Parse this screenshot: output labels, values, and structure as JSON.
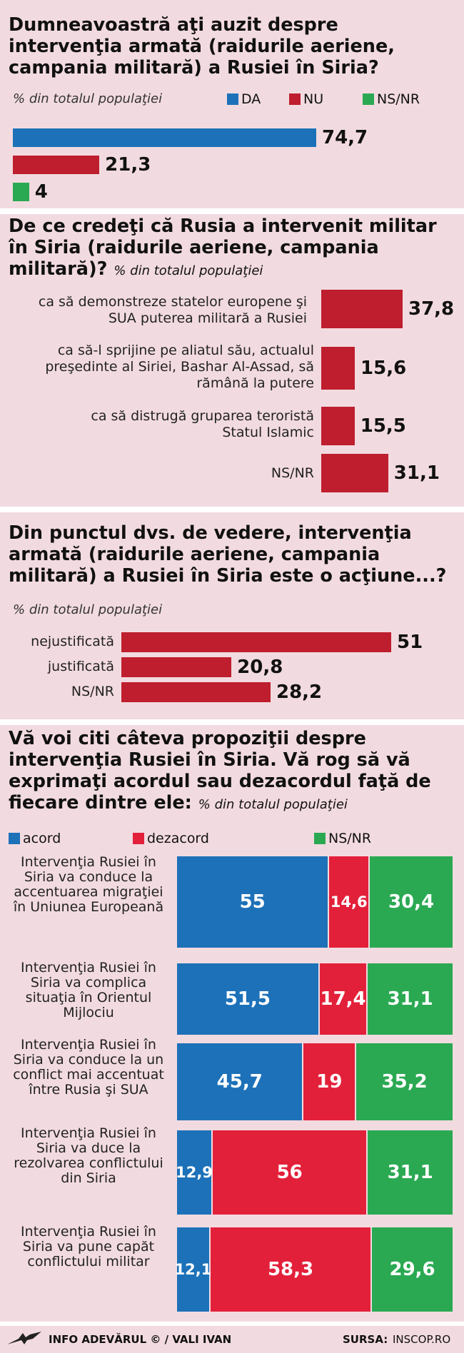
{
  "colors": {
    "da": "#1d71b8",
    "nu": "#be1e2d",
    "nsnr": "#2aa952",
    "acord": "#1d71b8",
    "dezacord": "#e3203a",
    "panel": "#f2dbe0"
  },
  "q1": {
    "title": "Dumneavoastră aţi auzit despre intervenţia armată (raidurile aeriene, campania militară) a Rusiei în Siria?",
    "subtitle": "% din totalul populaţiei",
    "legend": [
      "DA",
      "NU",
      "NS/NR"
    ]
  },
  "q2": {
    "title": "De ce credeţi că Rusia a intervenit militar în Siria (raidurile aeriene, campania militară)?",
    "subtitle": "% din totalul populaţiei"
  },
  "q3": {
    "title": "Din punctul dvs. de vedere, intervenţia armată (raidurile aeriene, campania militară) a Rusiei în Siria este o acţiune...?",
    "subtitle": "% din totalul populaţiei"
  },
  "q4": {
    "title": "Vă voi citi câteva propoziţii despre intervenţia Rusiei în Siria. Vă rog să vă exprimaţi acordul sau dezacordul faţă de fiecare dintre ele:",
    "subtitle": "% din totalul populaţiei",
    "legend": [
      "acord",
      "dezacord",
      "NS/NR"
    ]
  },
  "footer": {
    "credit": "INFO ADEVĂRUL © / VALI IVAN",
    "source_label": "SURSA:",
    "source": "INSCOP.RO"
  },
  "chart_data": [
    {
      "type": "bar",
      "categories": [
        "DA",
        "NU",
        "NS/NR"
      ],
      "values": [
        74.7,
        21.3,
        4
      ],
      "labels": [
        "74,7",
        "21,3",
        "4"
      ]
    },
    {
      "type": "bar",
      "categories": [
        "ca să demonstreze statelor europene şi SUA puterea militară a Rusiei",
        "ca să-l sprijine pe aliatul său, actualul preşedinte al Siriei, Bashar Al-Assad, să rămână la putere",
        "ca să distrugă gruparea teroristă Statul Islamic",
        "NS/NR"
      ],
      "values": [
        37.8,
        15.6,
        15.5,
        31.1
      ],
      "labels": [
        "37,8",
        "15,6",
        "15,5",
        "31,1"
      ]
    },
    {
      "type": "bar",
      "categories": [
        "nejustificată",
        "justificată",
        "NS/NR"
      ],
      "values": [
        51,
        20.8,
        28.2
      ],
      "labels": [
        "51",
        "20,8",
        "28,2"
      ]
    },
    {
      "type": "bar",
      "stacked": true,
      "categories": [
        "Intervenţia Rusiei în Siria va conduce la accentuarea migraţiei în Uniunea Europeană",
        "Intervenţia Rusiei în Siria va complica situaţia în Orientul Mijlociu",
        "Intervenţia Rusiei în Siria va conduce la un conflict mai accentuat între Rusia şi SUA",
        "Intervenţia Rusiei în Siria va duce la rezolvarea conflictului din Siria",
        "Intervenţia Rusiei în Siria va pune capăt conflictului militar"
      ],
      "series": [
        {
          "name": "acord",
          "values": [
            55,
            51.5,
            45.7,
            12.9,
            12.1
          ],
          "labels": [
            "55",
            "51,5",
            "45,7",
            "12,9",
            "12,1"
          ]
        },
        {
          "name": "dezacord",
          "values": [
            14.6,
            17.4,
            19,
            56,
            58.3
          ],
          "labels": [
            "14,6",
            "17,4",
            "19",
            "56",
            "58,3"
          ]
        },
        {
          "name": "NS/NR",
          "values": [
            30.4,
            31.1,
            35.2,
            31.1,
            29.6
          ],
          "labels": [
            "30,4",
            "31,1",
            "35,2",
            "31,1",
            "29,6"
          ]
        }
      ]
    }
  ]
}
